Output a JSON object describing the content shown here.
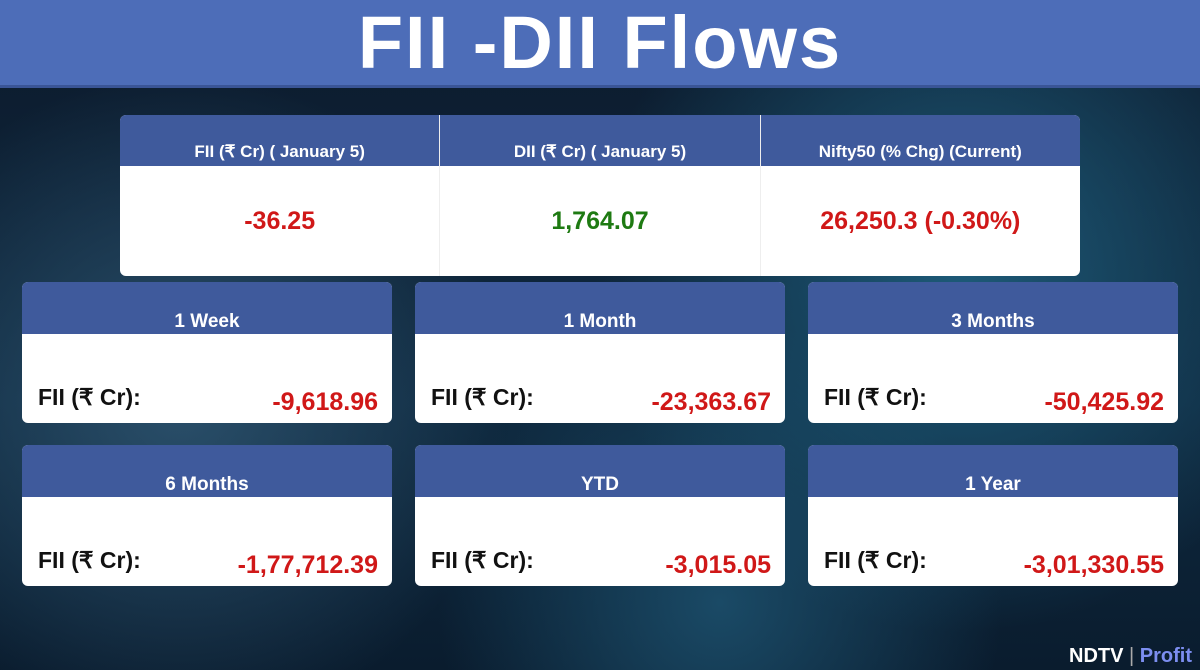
{
  "title": "FII -DII Flows",
  "colors": {
    "negative": "#d01818",
    "positive": "#1e7a12",
    "header": "#3f5a9c"
  },
  "top": [
    {
      "header": "FII (₹ Cr) ( January 5)",
      "value": "-36.25",
      "color": "#d01818"
    },
    {
      "header": "DII (₹ Cr) ( January 5)",
      "value": "1,764.07",
      "color": "#1e7a12"
    },
    {
      "header": "Nifty50 (% Chg) (Current)",
      "value": "26,250.3 (-0.30%)",
      "color": "#d01818"
    }
  ],
  "cards": [
    {
      "period": "1 Week",
      "label": "FII (₹ Cr):",
      "value": "-9,618.96"
    },
    {
      "period": "1 Month",
      "label": "FII (₹ Cr):",
      "value": "-23,363.67"
    },
    {
      "period": "3 Months",
      "label": "FII (₹ Cr):",
      "value": "-50,425.92"
    },
    {
      "period": "6 Months",
      "label": "FII (₹ Cr):",
      "value": "-1,77,712.39"
    },
    {
      "period": "YTD",
      "label": "FII (₹ Cr):",
      "value": "-3,015.05"
    },
    {
      "period": "1 Year",
      "label": "FII (₹ Cr):",
      "value": "-3,01,330.55"
    }
  ],
  "logo": {
    "brand": "NDTV",
    "sub": "Profit"
  }
}
